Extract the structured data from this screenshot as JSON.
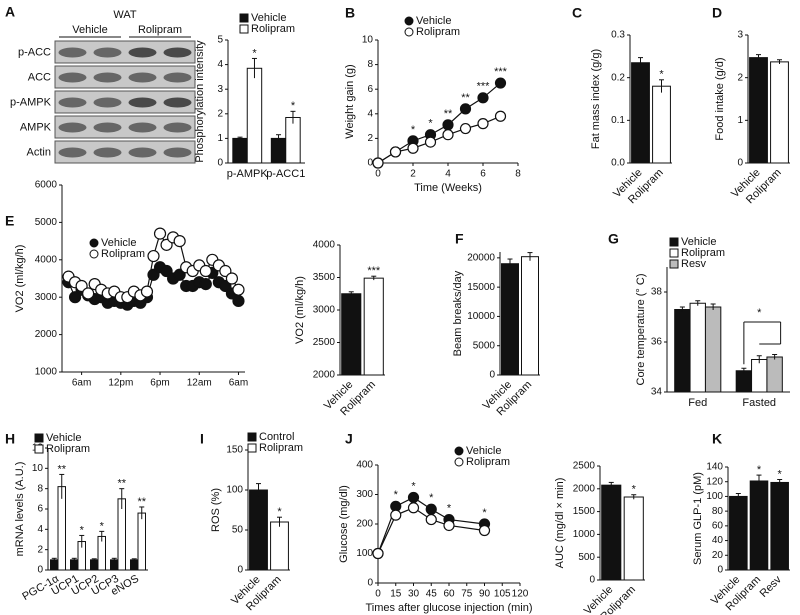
{
  "chart_data": [
    {
      "type": "blot",
      "panel": "A",
      "title": "WAT",
      "groups": [
        "Vehicle",
        "Rolipram"
      ],
      "rows": [
        "p-ACC",
        "ACC",
        "p-AMPK",
        "AMPK",
        "Actin"
      ]
    },
    {
      "type": "bar",
      "ylabel": "Phosphorylation intensity",
      "categories": [
        "p-AMPK",
        "p-ACC1"
      ],
      "series": [
        {
          "name": "Vehicle",
          "color": "#111111",
          "values": [
            1.0,
            1.0
          ],
          "errors": [
            0.05,
            0.15
          ],
          "stars": [
            null,
            null
          ]
        },
        {
          "name": "Rolipram",
          "color": "#ffffff",
          "values": [
            3.85,
            1.85
          ],
          "errors": [
            0.4,
            0.25
          ],
          "stars": [
            "*",
            "*"
          ]
        }
      ],
      "ylim": [
        0,
        5
      ],
      "yticks": [
        0,
        1,
        2,
        3,
        4,
        5
      ]
    },
    {
      "type": "line",
      "panel": "B",
      "xlabel": "Time (Weeks)",
      "ylabel": "Weight gain (g)",
      "x": [
        0,
        1,
        2,
        3,
        4,
        5,
        6,
        7
      ],
      "series": [
        {
          "name": "Vehicle",
          "color": "#111111",
          "values": [
            0,
            0.9,
            1.8,
            2.3,
            3.1,
            4.4,
            5.3,
            6.5
          ],
          "stars": [
            null,
            null,
            "*",
            "*",
            "**",
            "**",
            "***",
            "***"
          ]
        },
        {
          "name": "Rolipram",
          "color": "#ffffff",
          "values": [
            0,
            0.9,
            1.2,
            1.7,
            2.3,
            2.8,
            3.2,
            3.8
          ]
        }
      ],
      "xlim": [
        0,
        8
      ],
      "xticks": [
        0,
        2,
        4,
        6,
        8
      ],
      "ylim": [
        0,
        10
      ],
      "yticks": [
        0,
        2,
        4,
        6,
        8,
        10
      ]
    },
    {
      "type": "bar",
      "panel": "C",
      "ylabel": "Fat mass index (g/g)",
      "categories": [
        "Vehicle",
        "Rolipram"
      ],
      "values": [
        0.235,
        0.18
      ],
      "errors": [
        0.012,
        0.015
      ],
      "stars": [
        null,
        "*"
      ],
      "colors": [
        "#111111",
        "#ffffff"
      ],
      "ylim": [
        0,
        0.3
      ],
      "yticks": [
        {
          "value": 0,
          "label": "0.0"
        },
        0.1,
        0.2,
        0.3
      ]
    },
    {
      "type": "bar",
      "panel": "D",
      "ylabel": "Food intake (g/d)",
      "categories": [
        "Vehicle",
        "Rolipram"
      ],
      "values": [
        2.47,
        2.37
      ],
      "errors": [
        0.07,
        0.05
      ],
      "colors": [
        "#111111",
        "#ffffff"
      ],
      "ylim": [
        0,
        3
      ],
      "yticks": [
        0,
        1,
        2,
        3
      ]
    },
    {
      "type": "line",
      "panel": "E",
      "ylabel": "VO2 (ml/kg/h)",
      "x": [
        -2,
        -1,
        0,
        1,
        2,
        3,
        4,
        5,
        6,
        7,
        8,
        9,
        10,
        11,
        12,
        13,
        14,
        15,
        16,
        17,
        18,
        19,
        20,
        21,
        22,
        23,
        24
      ],
      "series": [
        {
          "name": "Vehicle",
          "color": "#111111",
          "values": [
            3400,
            3000,
            3200,
            3050,
            2950,
            3000,
            2850,
            2900,
            2850,
            2800,
            2900,
            2850,
            3000,
            3600,
            3800,
            3700,
            3500,
            3600,
            3300,
            3300,
            3400,
            3350,
            3650,
            3400,
            3300,
            3100,
            2900
          ]
        },
        {
          "name": "Rolipram",
          "color": "#ffffff",
          "values": [
            3550,
            3400,
            3300,
            3100,
            3350,
            3200,
            3100,
            3150,
            3000,
            3000,
            3150,
            3050,
            3150,
            4100,
            4700,
            4400,
            4600,
            4500,
            3800,
            3700,
            3850,
            3700,
            4000,
            3850,
            3700,
            3500,
            3200
          ]
        }
      ],
      "xlim": [
        -3,
        25
      ],
      "xticks": [
        {
          "value": 0,
          "label": "6am"
        },
        {
          "value": 6,
          "label": "12pm"
        },
        {
          "value": 12,
          "label": "6pm"
        },
        {
          "value": 18,
          "label": "12am"
        },
        {
          "value": 24,
          "label": "6am"
        }
      ],
      "ylim": [
        1000,
        6000
      ],
      "yticks": [
        1000,
        2000,
        3000,
        4000,
        5000,
        6000
      ]
    },
    {
      "type": "bar",
      "ylabel": "VO2 (ml/kg/h)",
      "categories": [
        "Vehicle",
        "Rolipram"
      ],
      "values": [
        3250,
        3490
      ],
      "errors": [
        30,
        30
      ],
      "stars": [
        null,
        "***"
      ],
      "colors": [
        "#111111",
        "#ffffff"
      ],
      "ylim": [
        2000,
        4000
      ],
      "yticks": [
        2000,
        2500,
        3000,
        3500,
        4000
      ]
    },
    {
      "type": "bar",
      "panel": "F",
      "ylabel": "Beam breaks/day",
      "categories": [
        "Vehicle",
        "Rolipram"
      ],
      "values": [
        19000,
        20200
      ],
      "errors": [
        800,
        700
      ],
      "colors": [
        "#111111",
        "#ffffff"
      ],
      "ylim": [
        0,
        21000
      ],
      "yticks": [
        0,
        5000,
        10000,
        15000,
        20000
      ]
    },
    {
      "type": "bar",
      "panel": "G",
      "ylabel": "Core temperature (° C)",
      "categories": [
        "Fed",
        "Fasted"
      ],
      "series": [
        {
          "name": "Vehicle",
          "color": "#111111",
          "values": [
            37.3,
            34.85
          ],
          "errors": [
            0.1,
            0.1
          ]
        },
        {
          "name": "Rolipram",
          "color": "#ffffff",
          "values": [
            37.55,
            35.3
          ],
          "errors": [
            0.1,
            0.15
          ]
        },
        {
          "name": "Resv",
          "color": "#bbbbbb",
          "values": [
            37.4,
            35.4
          ],
          "errors": [
            0.12,
            0.1
          ]
        }
      ],
      "annotation": "*",
      "ylim": [
        34,
        39
      ],
      "yticks": [
        34,
        36,
        38
      ]
    },
    {
      "type": "bar",
      "panel": "H",
      "ylabel": "mRNA levels (A.U.)",
      "categories": [
        "PGC-1α",
        "UCP1",
        "UCP2",
        "UCP3",
        "eNOS"
      ],
      "series": [
        {
          "name": "Vehicle",
          "color": "#111111",
          "values": [
            1,
            1,
            1,
            1,
            1
          ],
          "errors": [
            0.15,
            0.15,
            0.1,
            0.15,
            0.1
          ]
        },
        {
          "name": "Rolipram",
          "color": "#ffffff",
          "values": [
            8.2,
            2.8,
            3.3,
            7.0,
            5.6
          ],
          "errors": [
            1.2,
            0.6,
            0.5,
            1.0,
            0.6
          ],
          "stars": [
            "**",
            "*",
            "*",
            "**",
            "**"
          ]
        }
      ],
      "ylim": [
        0,
        12
      ],
      "yticks": [
        0,
        2,
        4,
        6,
        8,
        10,
        12
      ]
    },
    {
      "type": "bar",
      "panel": "I",
      "ylabel": "ROS (%)",
      "categories": [
        "Vehicle",
        "Rolipram"
      ],
      "legend": [
        {
          "name": "Control",
          "color": "#111111"
        },
        {
          "name": "Rolipram",
          "color": "#ffffff"
        }
      ],
      "values": [
        100,
        60
      ],
      "errors": [
        8,
        6
      ],
      "stars": [
        null,
        "*"
      ],
      "colors": [
        "#111111",
        "#ffffff"
      ],
      "ylim": [
        0,
        150
      ],
      "yticks": [
        0,
        50,
        100,
        150
      ]
    },
    {
      "type": "line",
      "panel": "J",
      "xlabel": "Times after glucose injection (min)",
      "ylabel": "Glucose (mg/dl)",
      "x": [
        0,
        15,
        30,
        45,
        60,
        90
      ],
      "series": [
        {
          "name": "Vehicle",
          "color": "#111111",
          "values": [
            100,
            260,
            290,
            250,
            215,
            200
          ],
          "errors": [
            0,
            10,
            15,
            10,
            10,
            8
          ],
          "stars": [
            null,
            "*",
            "*",
            "*",
            "*",
            "*"
          ]
        },
        {
          "name": "Rolipram",
          "color": "#ffffff",
          "values": [
            100,
            230,
            255,
            215,
            195,
            178
          ],
          "errors": [
            0,
            10,
            10,
            8,
            8,
            6
          ]
        }
      ],
      "xlim": [
        0,
        120
      ],
      "xticks": [
        0,
        15,
        30,
        45,
        60,
        75,
        90,
        105,
        120
      ],
      "ylim": [
        0,
        400
      ],
      "yticks": [
        0,
        100,
        200,
        300,
        400
      ]
    },
    {
      "type": "bar",
      "ylabel": "AUC (mg/dl × min)",
      "categories": [
        "Vehicle",
        "Rolipram"
      ],
      "values": [
        2080,
        1820
      ],
      "errors": [
        60,
        50
      ],
      "stars": [
        null,
        "*"
      ],
      "colors": [
        "#111111",
        "#ffffff"
      ],
      "ylim": [
        0,
        2500
      ],
      "yticks": [
        0,
        500,
        1000,
        1500,
        2000,
        2500
      ]
    },
    {
      "type": "bar",
      "panel": "K",
      "ylabel": "Serum GLP-1 (pM)",
      "categories": [
        "Vehicle",
        "Rolipram",
        "Resv"
      ],
      "values": [
        100,
        121,
        119
      ],
      "errors": [
        4,
        8,
        4
      ],
      "stars": [
        null,
        "*",
        "*"
      ],
      "colors": [
        "#111111",
        "#111111",
        "#111111"
      ],
      "ylim": [
        0,
        140
      ],
      "yticks": [
        0,
        20,
        40,
        60,
        80,
        100,
        120,
        140
      ]
    }
  ]
}
